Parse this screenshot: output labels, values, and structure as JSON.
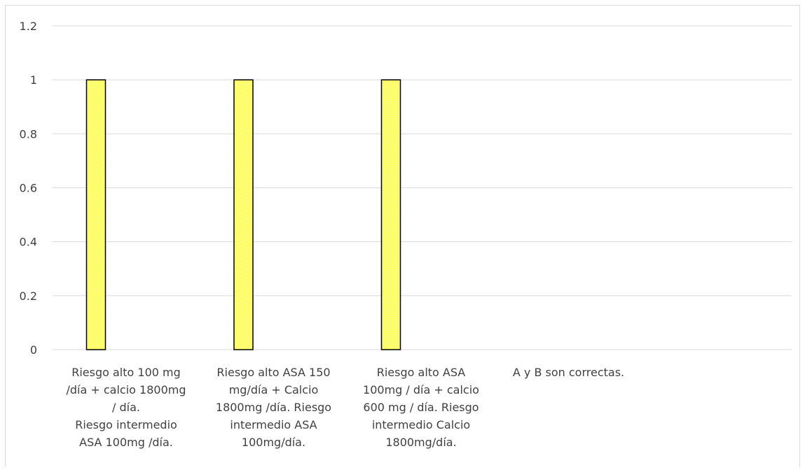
{
  "chart_data": {
    "type": "bar",
    "categories": [
      "Riesgo alto 100 mg /día + calcio 1800mg / día. Riesgo intermedio ASA 100mg /día.",
      "Riesgo alto ASA 150 mg/día + Calcio 1800mg /día.  Riesgo intermedio ASA 100mg/día.",
      "Riesgo alto ASA 100mg / día + calcio 600 mg / día. Riesgo intermedio Calcio 1800mg/día.",
      "A y B son correctas."
    ],
    "category_lines": [
      [
        "Riesgo alto 100 mg",
        "/día + calcio 1800mg",
        "/ día.",
        "Riesgo intermedio",
        "ASA 100mg /día."
      ],
      [
        "Riesgo alto ASA 150",
        "mg/día + Calcio",
        "1800mg /día.  Riesgo",
        "intermedio ASA",
        "100mg/día."
      ],
      [
        "Riesgo alto ASA",
        "100mg / día + calcio",
        "600 mg / día. Riesgo",
        "intermedio Calcio",
        "1800mg/día."
      ],
      [
        "A y B son correctas."
      ]
    ],
    "values": [
      1,
      1,
      1,
      0
    ],
    "ylim": [
      0,
      1.2
    ],
    "yticks": [
      "0",
      "0.2",
      "0.4",
      "0.6",
      "0.8",
      "1",
      "1.2"
    ],
    "title": "",
    "xlabel": "",
    "ylabel": "",
    "grid": true,
    "bar_color": "#FFFF66",
    "bar_border_color": "#000000",
    "grid_color": "#d9d9d9"
  }
}
